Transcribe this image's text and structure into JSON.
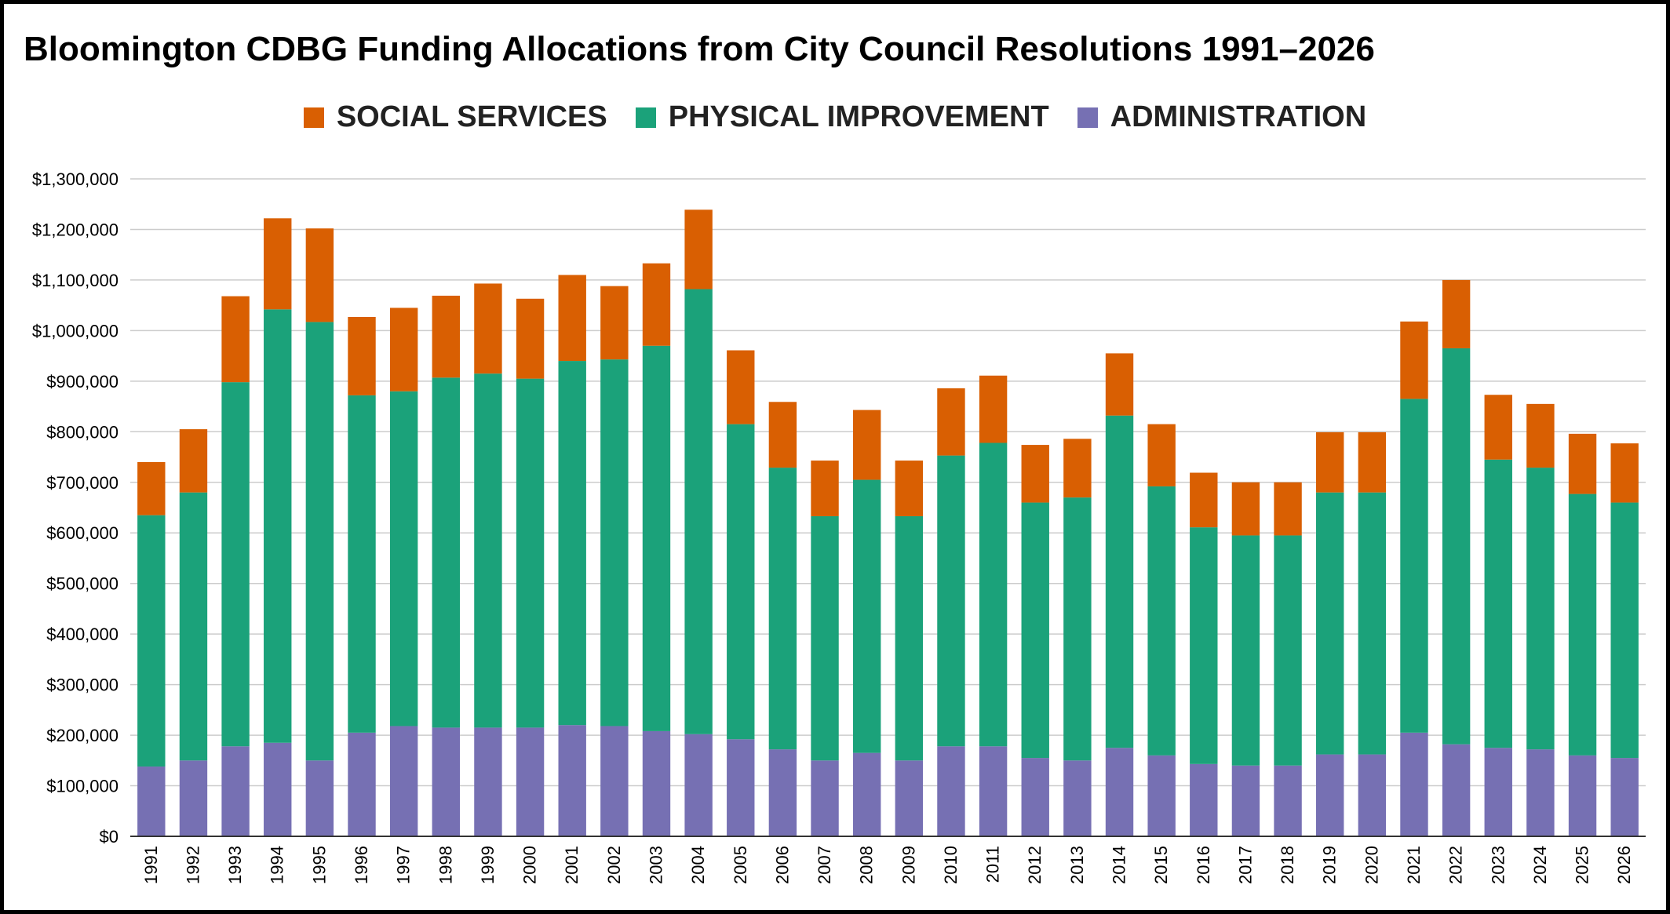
{
  "chart_data": {
    "type": "bar",
    "stacked": true,
    "title": "Bloomington  CDBG Funding Allocations from City Council Resolutions 1991–2026",
    "xlabel": "",
    "ylabel": "",
    "ylim": [
      0,
      1300000
    ],
    "grid": true,
    "legend_position": "top-center",
    "yticks": [
      {
        "value": 0,
        "label": "$0"
      },
      {
        "value": 100000,
        "label": "$100,000"
      },
      {
        "value": 200000,
        "label": "$200,000"
      },
      {
        "value": 300000,
        "label": "$300,000"
      },
      {
        "value": 400000,
        "label": "$400,000"
      },
      {
        "value": 500000,
        "label": "$500,000"
      },
      {
        "value": 600000,
        "label": "$600,000"
      },
      {
        "value": 700000,
        "label": "$700,000"
      },
      {
        "value": 800000,
        "label": "$800,000"
      },
      {
        "value": 900000,
        "label": "$900,000"
      },
      {
        "value": 1000000,
        "label": "$1,000,000"
      },
      {
        "value": 1100000,
        "label": "$1,100,000"
      },
      {
        "value": 1200000,
        "label": "$1,200,000"
      },
      {
        "value": 1300000,
        "label": "$1,300,000"
      }
    ],
    "categories": [
      "1991",
      "1992",
      "1993",
      "1994",
      "1995",
      "1996",
      "1997",
      "1998",
      "1999",
      "2000",
      "2001",
      "2002",
      "2003",
      "2004",
      "2005",
      "2006",
      "2007",
      "2008",
      "2009",
      "2010",
      "2011",
      "2012",
      "2013",
      "2014",
      "2015",
      "2016",
      "2017",
      "2018",
      "2019",
      "2020",
      "2021",
      "2022",
      "2023",
      "2024",
      "2025",
      "2026"
    ],
    "series": [
      {
        "name": "ADMINISTRATION",
        "color": "#7670b3",
        "values": [
          138000,
          150000,
          178000,
          185000,
          150000,
          205000,
          218000,
          215000,
          215000,
          215000,
          220000,
          218000,
          208000,
          202000,
          192000,
          172000,
          150000,
          165000,
          150000,
          178000,
          178000,
          155000,
          150000,
          175000,
          160000,
          143000,
          140000,
          140000,
          162000,
          162000,
          205000,
          182000,
          175000,
          172000,
          160000,
          155000
        ]
      },
      {
        "name": "PHYSICAL IMPROVEMENT",
        "color": "#1ba27a",
        "values": [
          497000,
          530000,
          720000,
          857000,
          867000,
          667000,
          662000,
          692000,
          700000,
          690000,
          720000,
          725000,
          762000,
          880000,
          623000,
          557000,
          483000,
          540000,
          483000,
          575000,
          600000,
          505000,
          520000,
          657000,
          532000,
          468000,
          455000,
          455000,
          518000,
          518000,
          660000,
          783000,
          570000,
          557000,
          517000,
          505000
        ]
      },
      {
        "name": "SOCIAL SERVICES",
        "color": "#d95f02",
        "values": [
          105000,
          125000,
          170000,
          180000,
          185000,
          155000,
          165000,
          162000,
          178000,
          158000,
          170000,
          145000,
          163000,
          157000,
          146000,
          130000,
          110000,
          138000,
          110000,
          133000,
          133000,
          114000,
          116000,
          123000,
          123000,
          108000,
          105000,
          105000,
          119000,
          119000,
          153000,
          135000,
          128000,
          126000,
          119000,
          117000
        ]
      }
    ]
  }
}
